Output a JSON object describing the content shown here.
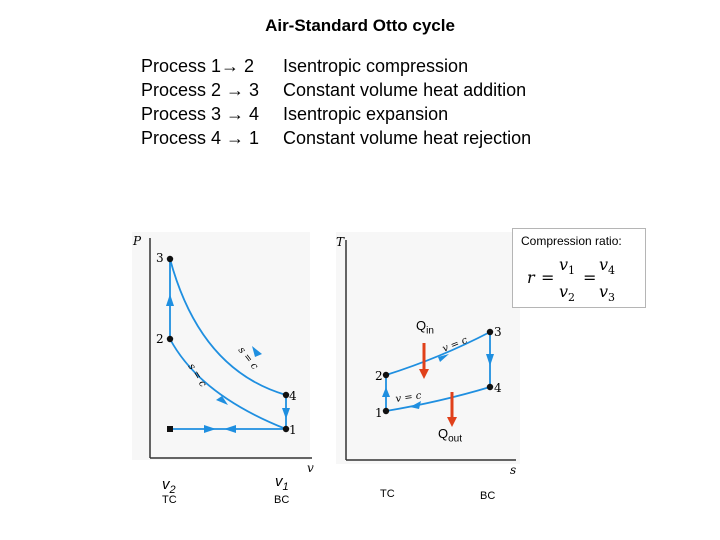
{
  "title": "Air-Standard Otto cycle",
  "processes": [
    {
      "label": "Process 1→ 2",
      "description": "Isentropic compression"
    },
    {
      "label": "Process 2 → 3",
      "description": "Constant volume heat addition"
    },
    {
      "label": "Process 3 → 4",
      "description": "Isentropic expansion"
    },
    {
      "label": "Process 4 → 1",
      "description": "Constant volume heat rejection"
    }
  ],
  "pv_diagram": {
    "y_axis": "P",
    "x_axis": "v",
    "points": [
      "1",
      "2",
      "3",
      "4"
    ],
    "curve_labels": [
      "s = c",
      "s = c"
    ],
    "v_labels": [
      {
        "symbol": "v",
        "sub": "2",
        "position": "TC"
      },
      {
        "symbol": "v",
        "sub": "1",
        "position": "BC"
      }
    ]
  },
  "ts_diagram": {
    "y_axis": "T",
    "x_axis": "s",
    "points": [
      "1",
      "2",
      "3",
      "4"
    ],
    "curve_labels": [
      "v = c",
      "v = c"
    ],
    "bottom_labels": [
      "TC",
      "BC"
    ]
  },
  "heat": {
    "in_main": "Q",
    "in_sub": "in",
    "out_main": "Q",
    "out_sub": "out"
  },
  "compression_ratio": {
    "title": "Compression ratio:",
    "r": "r",
    "eq": "=",
    "v1": "v",
    "v1_sub": "1",
    "v2": "v",
    "v2_sub": "2",
    "v3": "v",
    "v3_sub": "3",
    "v4": "v",
    "v4_sub": "4"
  },
  "colors": {
    "process_line": "#1f8fe0",
    "axis": "#333333",
    "heat_arrow": "#e0401a",
    "point": "#111111"
  }
}
